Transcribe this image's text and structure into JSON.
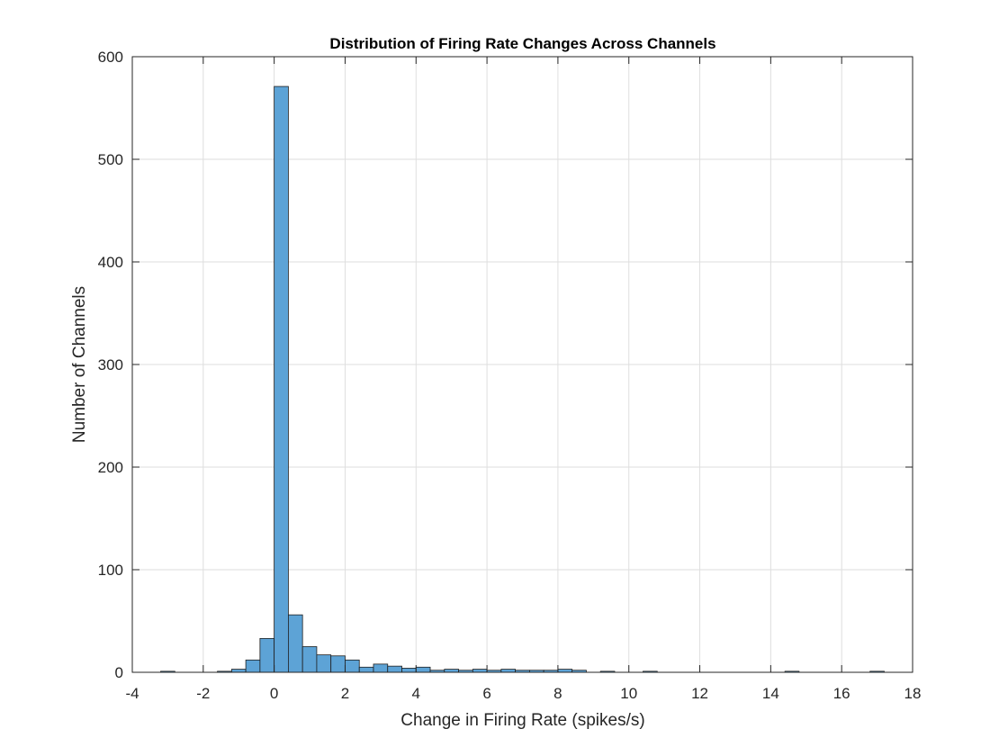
{
  "chart_data": {
    "type": "bar",
    "title": "Distribution of Firing Rate Changes Across Channels",
    "xlabel": "Change in Firing Rate (spikes/s)",
    "ylabel": "Number of Channels",
    "xlim": [
      -4,
      18
    ],
    "ylim": [
      0,
      600
    ],
    "xticks": [
      -4,
      -2,
      0,
      2,
      4,
      6,
      8,
      10,
      12,
      14,
      16,
      18
    ],
    "yticks": [
      0,
      100,
      200,
      300,
      400,
      500,
      600
    ],
    "grid": true,
    "bar_color": "#5da3d6",
    "bin_width": 0.4,
    "bins": [
      {
        "x0": -3.2,
        "count": 1
      },
      {
        "x0": -1.6,
        "count": 1
      },
      {
        "x0": -1.2,
        "count": 3
      },
      {
        "x0": -0.8,
        "count": 12
      },
      {
        "x0": -0.4,
        "count": 33
      },
      {
        "x0": 0.0,
        "count": 571
      },
      {
        "x0": 0.4,
        "count": 56
      },
      {
        "x0": 0.8,
        "count": 25
      },
      {
        "x0": 1.2,
        "count": 17
      },
      {
        "x0": 1.6,
        "count": 16
      },
      {
        "x0": 2.0,
        "count": 12
      },
      {
        "x0": 2.4,
        "count": 5
      },
      {
        "x0": 2.8,
        "count": 8
      },
      {
        "x0": 3.2,
        "count": 6
      },
      {
        "x0": 3.6,
        "count": 4
      },
      {
        "x0": 4.0,
        "count": 5
      },
      {
        "x0": 4.4,
        "count": 2
      },
      {
        "x0": 4.8,
        "count": 3
      },
      {
        "x0": 5.2,
        "count": 2
      },
      {
        "x0": 5.6,
        "count": 3
      },
      {
        "x0": 6.0,
        "count": 2
      },
      {
        "x0": 6.4,
        "count": 3
      },
      {
        "x0": 6.8,
        "count": 2
      },
      {
        "x0": 7.2,
        "count": 2
      },
      {
        "x0": 7.6,
        "count": 2
      },
      {
        "x0": 8.0,
        "count": 3
      },
      {
        "x0": 8.4,
        "count": 2
      },
      {
        "x0": 9.2,
        "count": 1
      },
      {
        "x0": 10.4,
        "count": 1
      },
      {
        "x0": 14.4,
        "count": 1
      },
      {
        "x0": 16.8,
        "count": 1
      }
    ]
  }
}
